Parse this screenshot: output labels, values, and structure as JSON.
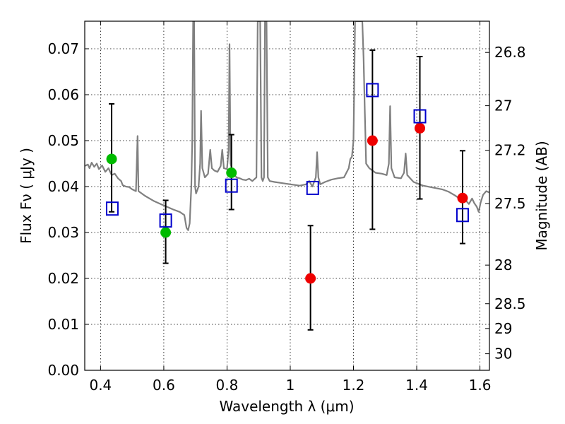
{
  "chart_data": {
    "type": "scatter",
    "xlabel": "Wavelength  λ (μm)",
    "ylabel_left": "Flux  Fν  ( μJy )",
    "ylabel_right": "Magnitude (AB)",
    "xlim": [
      0.35,
      1.63
    ],
    "ylim": [
      0.0,
      0.076
    ],
    "grid": true,
    "x_ticks": [
      0.4,
      0.6,
      0.8,
      1.0,
      1.2,
      1.4,
      1.6
    ],
    "x_tick_labels": [
      "0.4",
      "0.6",
      "0.8",
      "1",
      "1.2",
      "1.4",
      "1.6"
    ],
    "y_ticks": [
      0.0,
      0.01,
      0.02,
      0.03,
      0.04,
      0.05,
      0.06,
      0.07
    ],
    "y_tick_labels": [
      "0.00",
      "0.01",
      "0.02",
      "0.03",
      "0.04",
      "0.05",
      "0.06",
      "0.07"
    ],
    "right_ticks": [
      {
        "label": "26.8",
        "flux": 0.0692
      },
      {
        "label": "27",
        "flux": 0.0576
      },
      {
        "label": "27.2",
        "flux": 0.0479
      },
      {
        "label": "27.5",
        "flux": 0.0363
      },
      {
        "label": "28",
        "flux": 0.0229
      },
      {
        "label": "28.5",
        "flux": 0.0145
      },
      {
        "label": "29",
        "flux": 0.0091
      },
      {
        "label": "30",
        "flux": 0.0036
      }
    ],
    "series": [
      {
        "marker": "circle",
        "color": "#00bb00",
        "points": [
          {
            "x": 0.435,
            "y": 0.046,
            "yerr_low": 0.0345,
            "yerr_high": 0.058
          },
          {
            "x": 0.606,
            "y": 0.03,
            "yerr_low": 0.0233,
            "yerr_high": 0.037
          },
          {
            "x": 0.814,
            "y": 0.043,
            "yerr_low": 0.035,
            "yerr_high": 0.0513
          }
        ]
      },
      {
        "marker": "circle",
        "color": "#ee0000",
        "points": [
          {
            "x": 1.064,
            "y": 0.02,
            "yerr_low": 0.0088,
            "yerr_high": 0.0315
          },
          {
            "x": 1.26,
            "y": 0.05,
            "yerr_low": 0.0307,
            "yerr_high": 0.0697
          },
          {
            "x": 1.41,
            "y": 0.0527,
            "yerr_low": 0.0373,
            "yerr_high": 0.0683
          },
          {
            "x": 1.545,
            "y": 0.0375,
            "yerr_low": 0.0276,
            "yerr_high": 0.0478
          }
        ]
      },
      {
        "marker": "open-square",
        "color": "#0000cc",
        "points": [
          {
            "x": 0.437,
            "y": 0.0352
          },
          {
            "x": 0.606,
            "y": 0.0326
          },
          {
            "x": 0.814,
            "y": 0.0402
          },
          {
            "x": 1.071,
            "y": 0.0397
          },
          {
            "x": 1.26,
            "y": 0.061
          },
          {
            "x": 1.41,
            "y": 0.0553
          },
          {
            "x": 1.545,
            "y": 0.0338
          }
        ]
      }
    ],
    "model_spectrum": {
      "color": "#808080",
      "points": [
        [
          0.35,
          0.0445
        ],
        [
          0.36,
          0.0448
        ],
        [
          0.365,
          0.044
        ],
        [
          0.372,
          0.0452
        ],
        [
          0.38,
          0.0443
        ],
        [
          0.388,
          0.045
        ],
        [
          0.395,
          0.0438
        ],
        [
          0.405,
          0.0446
        ],
        [
          0.415,
          0.0432
        ],
        [
          0.425,
          0.044
        ],
        [
          0.435,
          0.0425
        ],
        [
          0.445,
          0.0428
        ],
        [
          0.455,
          0.0418
        ],
        [
          0.465,
          0.0412
        ],
        [
          0.47,
          0.0403
        ],
        [
          0.48,
          0.04
        ],
        [
          0.49,
          0.0399
        ],
        [
          0.5,
          0.0394
        ],
        [
          0.512,
          0.039
        ],
        [
          0.517,
          0.051
        ],
        [
          0.52,
          0.039
        ],
        [
          0.53,
          0.0385
        ],
        [
          0.54,
          0.038
        ],
        [
          0.555,
          0.0374
        ],
        [
          0.57,
          0.0368
        ],
        [
          0.59,
          0.0362
        ],
        [
          0.61,
          0.0356
        ],
        [
          0.63,
          0.035
        ],
        [
          0.65,
          0.0345
        ],
        [
          0.665,
          0.0338
        ],
        [
          0.672,
          0.031
        ],
        [
          0.677,
          0.0305
        ],
        [
          0.682,
          0.032
        ],
        [
          0.687,
          0.04
        ],
        [
          0.69,
          0.05
        ],
        [
          0.693,
          0.076
        ],
        [
          0.696,
          0.076
        ],
        [
          0.699,
          0.04
        ],
        [
          0.702,
          0.0385
        ],
        [
          0.71,
          0.04
        ],
        [
          0.715,
          0.045
        ],
        [
          0.718,
          0.0565
        ],
        [
          0.722,
          0.044
        ],
        [
          0.73,
          0.042
        ],
        [
          0.74,
          0.0428
        ],
        [
          0.747,
          0.048
        ],
        [
          0.752,
          0.044
        ],
        [
          0.76,
          0.0435
        ],
        [
          0.77,
          0.0432
        ],
        [
          0.78,
          0.0445
        ],
        [
          0.785,
          0.048
        ],
        [
          0.79,
          0.044
        ],
        [
          0.8,
          0.0438
        ],
        [
          0.805,
          0.048
        ],
        [
          0.808,
          0.071
        ],
        [
          0.811,
          0.045
        ],
        [
          0.82,
          0.0428
        ],
        [
          0.83,
          0.042
        ],
        [
          0.84,
          0.0418
        ],
        [
          0.85,
          0.0415
        ],
        [
          0.86,
          0.0414
        ],
        [
          0.87,
          0.0417
        ],
        [
          0.88,
          0.0412
        ],
        [
          0.893,
          0.042
        ],
        [
          0.897,
          0.076
        ],
        [
          0.905,
          0.076
        ],
        [
          0.909,
          0.042
        ],
        [
          0.913,
          0.0412
        ],
        [
          0.917,
          0.042
        ],
        [
          0.92,
          0.076
        ],
        [
          0.925,
          0.076
        ],
        [
          0.929,
          0.042
        ],
        [
          0.935,
          0.0412
        ],
        [
          0.95,
          0.041
        ],
        [
          0.97,
          0.0408
        ],
        [
          1.0,
          0.0405
        ],
        [
          1.03,
          0.0402
        ],
        [
          1.05,
          0.0405
        ],
        [
          1.06,
          0.0412
        ],
        [
          1.07,
          0.04
        ],
        [
          1.081,
          0.042
        ],
        [
          1.085,
          0.0475
        ],
        [
          1.089,
          0.042
        ],
        [
          1.095,
          0.0405
        ],
        [
          1.11,
          0.041
        ],
        [
          1.13,
          0.0415
        ],
        [
          1.15,
          0.0418
        ],
        [
          1.17,
          0.042
        ],
        [
          1.185,
          0.044
        ],
        [
          1.19,
          0.046
        ],
        [
          1.195,
          0.0465
        ],
        [
          1.2,
          0.05
        ],
        [
          1.202,
          0.06
        ],
        [
          1.205,
          0.076
        ],
        [
          1.228,
          0.076
        ],
        [
          1.232,
          0.068
        ],
        [
          1.236,
          0.056
        ],
        [
          1.24,
          0.045
        ],
        [
          1.25,
          0.044
        ],
        [
          1.27,
          0.043
        ],
        [
          1.29,
          0.0428
        ],
        [
          1.305,
          0.0425
        ],
        [
          1.312,
          0.045
        ],
        [
          1.316,
          0.0575
        ],
        [
          1.32,
          0.044
        ],
        [
          1.33,
          0.042
        ],
        [
          1.35,
          0.0418
        ],
        [
          1.36,
          0.043
        ],
        [
          1.365,
          0.0472
        ],
        [
          1.37,
          0.0425
        ],
        [
          1.39,
          0.041
        ],
        [
          1.42,
          0.0402
        ],
        [
          1.45,
          0.0398
        ],
        [
          1.48,
          0.0394
        ],
        [
          1.5,
          0.0389
        ],
        [
          1.52,
          0.0381
        ],
        [
          1.54,
          0.0372
        ],
        [
          1.555,
          0.037
        ],
        [
          1.565,
          0.0362
        ],
        [
          1.575,
          0.0374
        ],
        [
          1.582,
          0.0364
        ],
        [
          1.59,
          0.0356
        ],
        [
          1.596,
          0.0345
        ],
        [
          1.602,
          0.0365
        ],
        [
          1.61,
          0.0382
        ],
        [
          1.62,
          0.039
        ],
        [
          1.63,
          0.0387
        ]
      ]
    }
  }
}
